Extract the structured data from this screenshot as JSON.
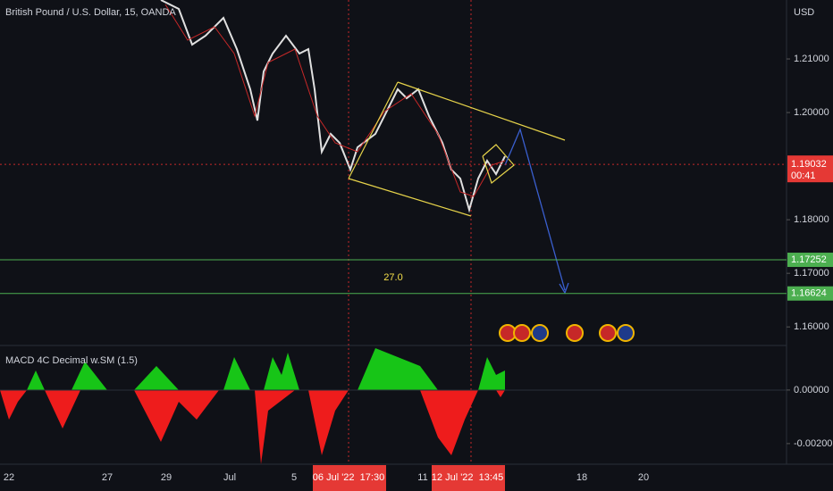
{
  "header": {
    "title": "British Pound / U.S. Dollar, 15, OANDA",
    "currency": "USD"
  },
  "price_axis": {
    "range": [
      1.1567,
      1.221
    ],
    "ticks": [
      {
        "value": 1.21,
        "label": "1.21000"
      },
      {
        "value": 1.2,
        "label": "1.20000"
      },
      {
        "value": 1.18,
        "label": "1.18000"
      },
      {
        "value": 1.17,
        "label": "1.17000"
      },
      {
        "value": 1.16,
        "label": "1.16000"
      }
    ]
  },
  "price_tags": [
    {
      "value": 1.19032,
      "label": "1.19032",
      "countdown": "00:41"
    },
    {
      "value": 1.17252,
      "label": "1.17252"
    },
    {
      "value": 1.16624,
      "label": "1.16624"
    }
  ],
  "annotation": "27.0",
  "indicator": {
    "title": "MACD 4C Decimal w.SM (1.5)",
    "range": [
      -0.00277,
      0.00163
    ],
    "ticks": [
      {
        "value": 0,
        "label": "0.00000"
      },
      {
        "value": -0.002,
        "label": "-0.00200"
      }
    ]
  },
  "time_axis": {
    "labels": [
      "22",
      "27",
      "29",
      "Jul",
      "5",
      "11",
      "18",
      "20"
    ],
    "highlighted": [
      "06 Jul '22  17:30",
      "12 Jul '22  13:45"
    ]
  }
}
